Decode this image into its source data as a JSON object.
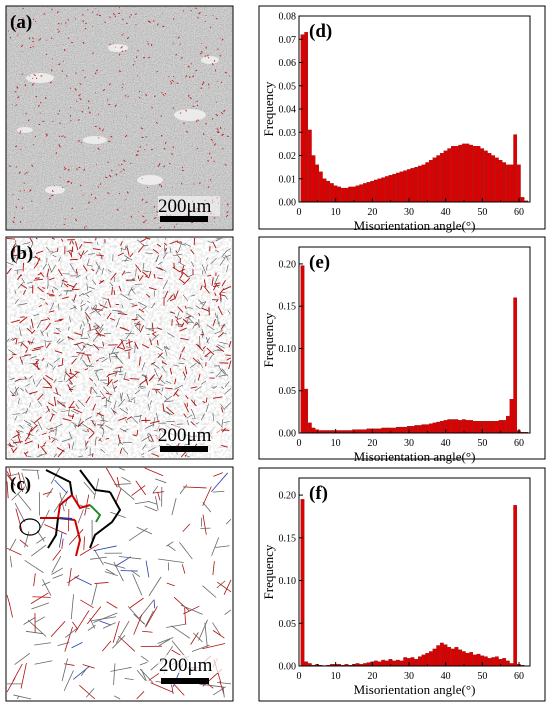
{
  "figure": {
    "micrographs": [
      {
        "label": "(a)",
        "scale_bar_text": "200μm"
      },
      {
        "label": "(b)",
        "scale_bar_text": "200μm"
      },
      {
        "label": "(c)",
        "scale_bar_text": "200μm"
      }
    ]
  },
  "chart_data": [
    {
      "type": "bar",
      "panel_label": "(d)",
      "xlabel": "Misorientation angle(°)",
      "ylabel": "Frequency",
      "xlim": [
        0,
        63
      ],
      "ylim": [
        0,
        0.08
      ],
      "xticks": [
        0,
        10,
        20,
        30,
        40,
        50,
        60
      ],
      "yticks": [
        "0.00",
        "0.01",
        "0.02",
        "0.03",
        "0.04",
        "0.05",
        "0.06",
        "0.07",
        "0.08"
      ],
      "bar_width_deg": 1,
      "bar_color": "#dd0000",
      "x": [
        1,
        2,
        3,
        4,
        5,
        6,
        7,
        8,
        9,
        10,
        11,
        12,
        13,
        14,
        15,
        16,
        17,
        18,
        19,
        20,
        21,
        22,
        23,
        24,
        25,
        26,
        27,
        28,
        29,
        30,
        31,
        32,
        33,
        34,
        35,
        36,
        37,
        38,
        39,
        40,
        41,
        42,
        43,
        44,
        45,
        46,
        47,
        48,
        49,
        50,
        51,
        52,
        53,
        54,
        55,
        56,
        57,
        58,
        59,
        60,
        61,
        62
      ],
      "values": [
        0.072,
        0.073,
        0.031,
        0.02,
        0.016,
        0.013,
        0.01,
        0.009,
        0.008,
        0.007,
        0.0065,
        0.006,
        0.006,
        0.0065,
        0.0065,
        0.007,
        0.0075,
        0.008,
        0.0085,
        0.009,
        0.0095,
        0.01,
        0.0105,
        0.011,
        0.0115,
        0.012,
        0.0125,
        0.013,
        0.0135,
        0.014,
        0.0145,
        0.015,
        0.0155,
        0.016,
        0.017,
        0.018,
        0.019,
        0.02,
        0.021,
        0.022,
        0.023,
        0.024,
        0.024,
        0.0245,
        0.025,
        0.025,
        0.0245,
        0.024,
        0.024,
        0.023,
        0.022,
        0.021,
        0.02,
        0.019,
        0.018,
        0.017,
        0.016,
        0.016,
        0.029,
        0.016,
        0.002,
        0.0005
      ]
    },
    {
      "type": "bar",
      "panel_label": "(e)",
      "xlabel": "Misorientation angle(°)",
      "ylabel": "Frequency",
      "xlim": [
        0,
        63
      ],
      "ylim": [
        0,
        0.22
      ],
      "xticks": [
        0,
        10,
        20,
        30,
        40,
        50,
        60
      ],
      "yticks": [
        "0.00",
        "0.05",
        "0.10",
        "0.15",
        "0.20"
      ],
      "bar_width_deg": 1,
      "bar_color": "#dd0000",
      "x": [
        1,
        2,
        3,
        4,
        5,
        6,
        7,
        8,
        9,
        10,
        11,
        12,
        13,
        14,
        15,
        16,
        17,
        18,
        19,
        20,
        21,
        22,
        23,
        24,
        25,
        26,
        27,
        28,
        29,
        30,
        31,
        32,
        33,
        34,
        35,
        36,
        37,
        38,
        39,
        40,
        41,
        42,
        43,
        44,
        45,
        46,
        47,
        48,
        49,
        50,
        51,
        52,
        53,
        54,
        55,
        56,
        57,
        58,
        59,
        60,
        61,
        62
      ],
      "values": [
        0.198,
        0.052,
        0.012,
        0.006,
        0.004,
        0.003,
        0.003,
        0.003,
        0.003,
        0.003,
        0.003,
        0.003,
        0.003,
        0.003,
        0.004,
        0.004,
        0.004,
        0.004,
        0.005,
        0.005,
        0.005,
        0.005,
        0.006,
        0.006,
        0.006,
        0.006,
        0.007,
        0.007,
        0.007,
        0.008,
        0.008,
        0.009,
        0.009,
        0.01,
        0.01,
        0.011,
        0.012,
        0.013,
        0.014,
        0.015,
        0.016,
        0.016,
        0.016,
        0.015,
        0.016,
        0.015,
        0.015,
        0.014,
        0.014,
        0.014,
        0.014,
        0.014,
        0.014,
        0.014,
        0.015,
        0.015,
        0.02,
        0.04,
        0.16,
        0.003,
        0.001,
        0.001
      ]
    },
    {
      "type": "bar",
      "panel_label": "(f)",
      "xlabel": "Misorientation angle(°)",
      "ylabel": "Frequency",
      "xlim": [
        0,
        63
      ],
      "ylim": [
        0,
        0.22
      ],
      "xticks": [
        0,
        10,
        20,
        30,
        40,
        50,
        60
      ],
      "yticks": [
        "0.00",
        "0.05",
        "0.10",
        "0.15",
        "0.20"
      ],
      "bar_width_deg": 1,
      "bar_color": "#dd0000",
      "x": [
        1,
        2,
        3,
        4,
        5,
        6,
        7,
        8,
        9,
        10,
        11,
        12,
        13,
        14,
        15,
        16,
        17,
        18,
        19,
        20,
        21,
        22,
        23,
        24,
        25,
        26,
        27,
        28,
        29,
        30,
        31,
        32,
        33,
        34,
        35,
        36,
        37,
        38,
        39,
        40,
        41,
        42,
        43,
        44,
        45,
        46,
        47,
        48,
        49,
        50,
        51,
        52,
        53,
        54,
        55,
        56,
        57,
        58,
        59,
        60,
        61,
        62
      ],
      "values": [
        0.195,
        0.005,
        0.003,
        0.001,
        0.002,
        0.001,
        0.0005,
        0.001,
        0.002,
        0.002,
        0.002,
        0.001,
        0.002,
        0.001,
        0.002,
        0.003,
        0.002,
        0.003,
        0.004,
        0.005,
        0.006,
        0.005,
        0.007,
        0.006,
        0.008,
        0.006,
        0.007,
        0.006,
        0.01,
        0.009,
        0.01,
        0.008,
        0.011,
        0.013,
        0.015,
        0.017,
        0.02,
        0.024,
        0.027,
        0.025,
        0.022,
        0.02,
        0.022,
        0.019,
        0.017,
        0.015,
        0.016,
        0.013,
        0.014,
        0.012,
        0.011,
        0.009,
        0.01,
        0.011,
        0.008,
        0.009,
        0.006,
        0.003,
        0.188,
        0.002,
        0.001,
        0.0
      ]
    }
  ]
}
